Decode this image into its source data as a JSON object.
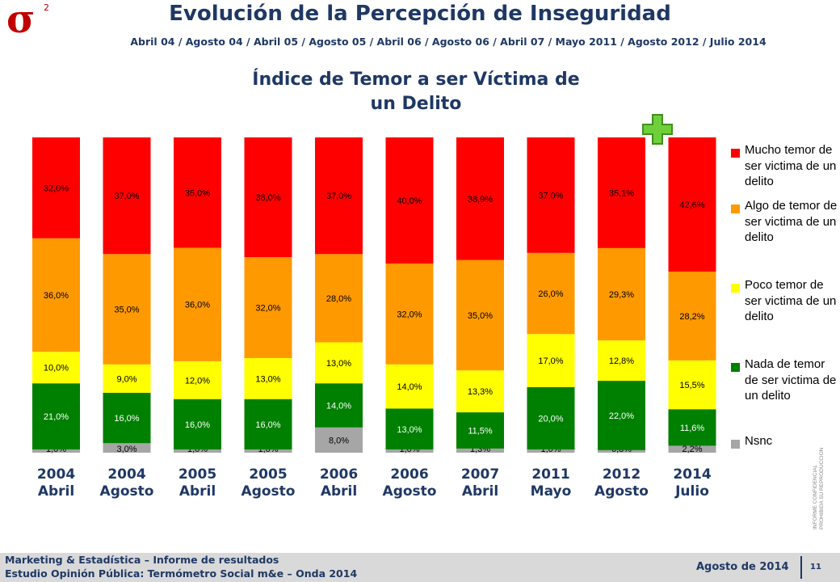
{
  "header": {
    "logo_text": "σ",
    "logo_sup": "2",
    "title": "Evolución de la Percepción de Inseguridad",
    "subtitle": "Abril 04 / Agosto 04 / Abril 05 / Agosto 05 / Abril 06 / Agosto 06 / Abril 07 / Mayo 2011 / Agosto 2012 / Julio 2014"
  },
  "colors": {
    "mucho": "#ff0000",
    "algo": "#ff9900",
    "poco": "#ffff00",
    "nada": "#008000",
    "nsnc": "#a6a6a6",
    "plus": "#66cc33"
  },
  "chart_data": {
    "type": "bar",
    "stacked": true,
    "title_line1": "Índice de Temor a ser Víctima de",
    "title_line2": "un Delito",
    "categories": [
      {
        "year": "2004",
        "period": "Abril"
      },
      {
        "year": "2004",
        "period": "Agosto"
      },
      {
        "year": "2005",
        "period": "Abril"
      },
      {
        "year": "2005",
        "period": "Agosto"
      },
      {
        "year": "2006",
        "period": "Abril"
      },
      {
        "year": "2006",
        "period": "Agosto"
      },
      {
        "year": "2007",
        "period": "Abril"
      },
      {
        "year": "2011",
        "period": "Mayo"
      },
      {
        "year": "2012",
        "period": "Agosto"
      },
      {
        "year": "2014",
        "period": "Julio"
      }
    ],
    "series": [
      {
        "key": "nsnc",
        "name": "Nsnc",
        "values": [
          1.0,
          3.0,
          1.0,
          1.0,
          8.0,
          1.0,
          1.3,
          1.0,
          0.8,
          2.2
        ],
        "labels": [
          "1,0%",
          "3,0%",
          "1,0%",
          "1,0%",
          "8,0%",
          "1,0%",
          "1,3%",
          "1,0%",
          "0,8%",
          "2,2%"
        ]
      },
      {
        "key": "nada",
        "name": "Nada de temor de ser victima de un delito",
        "values": [
          21.0,
          16.0,
          16.0,
          16.0,
          14.0,
          13.0,
          11.5,
          20.0,
          22.0,
          11.6
        ],
        "labels": [
          "21,0%",
          "16,0%",
          "16,0%",
          "16,0%",
          "14,0%",
          "13,0%",
          "11,5%",
          "20,0%",
          "22,0%",
          "11,6%"
        ]
      },
      {
        "key": "poco",
        "name": "Poco temor de ser victima de un delito",
        "values": [
          10.0,
          9.0,
          12.0,
          13.0,
          13.0,
          14.0,
          13.3,
          17.0,
          12.8,
          15.5
        ],
        "labels": [
          "10,0%",
          "9,0%",
          "12,0%",
          "13,0%",
          "13,0%",
          "14,0%",
          "13,3%",
          "17,0%",
          "12,8%",
          "15,5%"
        ]
      },
      {
        "key": "algo",
        "name": "Algo de temor de ser victima de un delito",
        "values": [
          36.0,
          35.0,
          36.0,
          32.0,
          28.0,
          32.0,
          35.0,
          26.0,
          29.3,
          28.2
        ],
        "labels": [
          "36,0%",
          "35,0%",
          "36,0%",
          "32,0%",
          "28,0%",
          "32,0%",
          "35,0%",
          "26,0%",
          "29,3%",
          "28,2%"
        ]
      },
      {
        "key": "mucho",
        "name": "Mucho temor de ser victima de un delito",
        "values": [
          32.0,
          37.0,
          35.0,
          38.0,
          37.0,
          40.0,
          38.9,
          37.0,
          35.1,
          42.6
        ],
        "labels": [
          "32,0%",
          "37,0%",
          "35,0%",
          "38,0%",
          "37,0%",
          "40,0%",
          "38,9%",
          "37,0%",
          "35,1%",
          "42,6%"
        ]
      }
    ],
    "ylim": [
      0,
      100
    ],
    "legend_position": "right"
  },
  "legend": {
    "items": [
      {
        "key": "mucho",
        "text": "Mucho temor de ser victima de un delito"
      },
      {
        "key": "algo",
        "text": "Algo de temor de ser victima de un delito"
      },
      {
        "key": "poco",
        "text": "Poco temor de ser victima de un delito"
      },
      {
        "key": "nada",
        "text": "Nada de temor de ser victima de un delito"
      },
      {
        "key": "nsnc",
        "text": "Nsnc"
      }
    ]
  },
  "side_note": {
    "line1": "INFORME CONFIDENCIAL",
    "line2": "PROHIBIDA SU REPRODUCCION"
  },
  "footer": {
    "line1": "Marketing & Estadística – Informe de resultados",
    "line2": "Estudio Opinión Pública: Termómetro Social m&e – Onda 2014",
    "date": "Agosto de 2014",
    "page": "11"
  }
}
